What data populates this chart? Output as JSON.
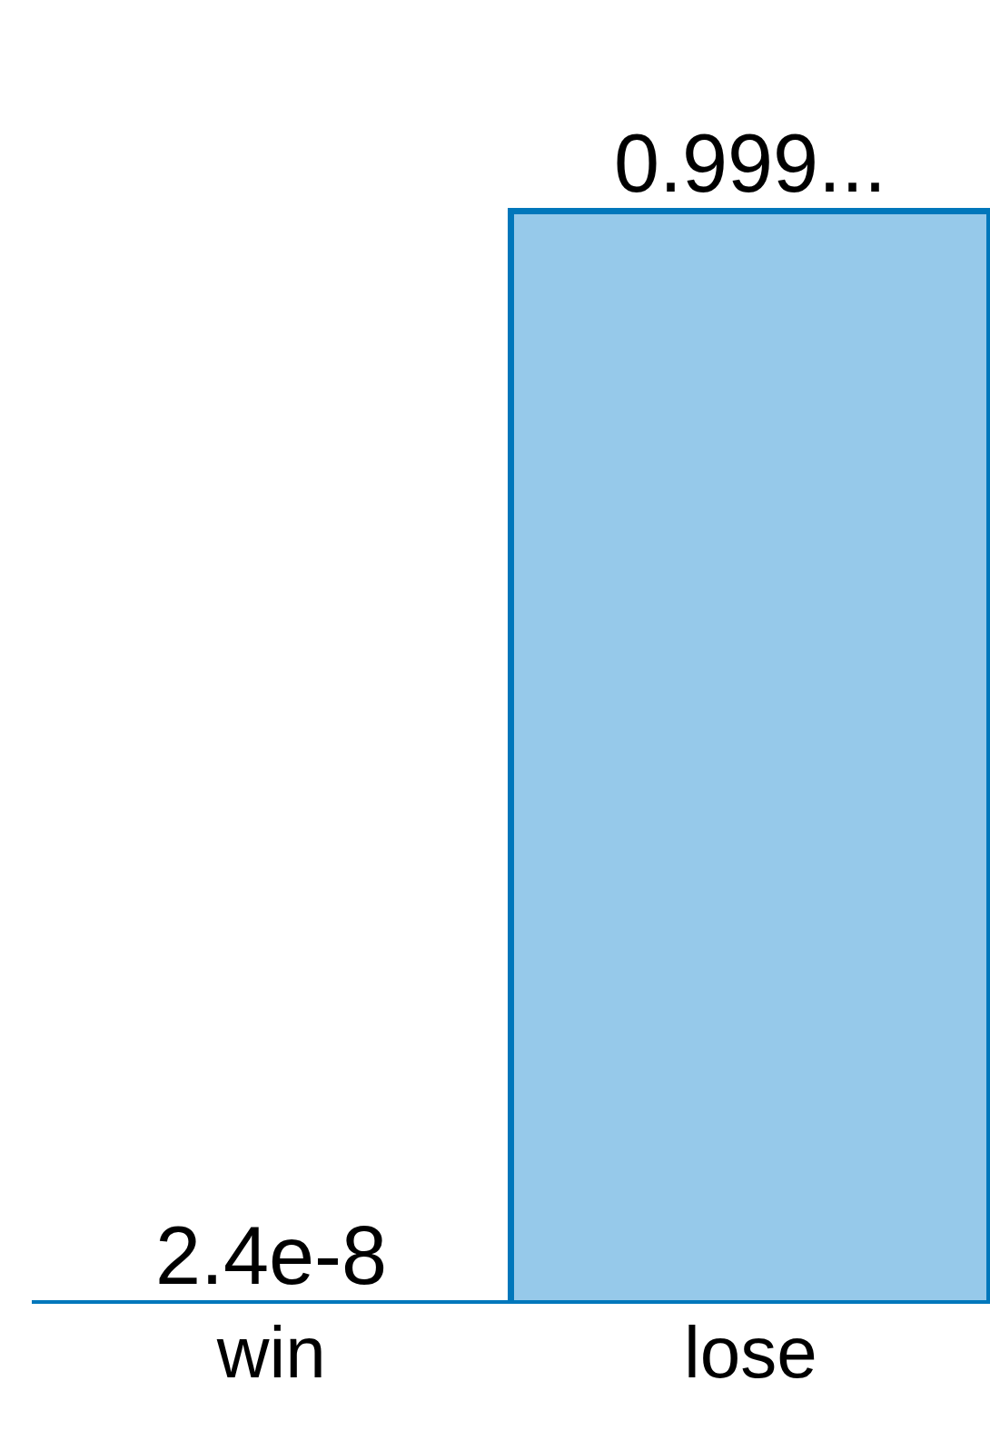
{
  "chart_data": {
    "type": "bar",
    "categories": [
      "win",
      "lose"
    ],
    "values": [
      2.4e-08,
      0.99999998
    ],
    "colors": [
      "#ffffff",
      "#96c9ea"
    ],
    "value_labels": [
      "2.4e-8",
      "0.999..."
    ],
    "tick_labels": "x",
    "legend": false
  }
}
